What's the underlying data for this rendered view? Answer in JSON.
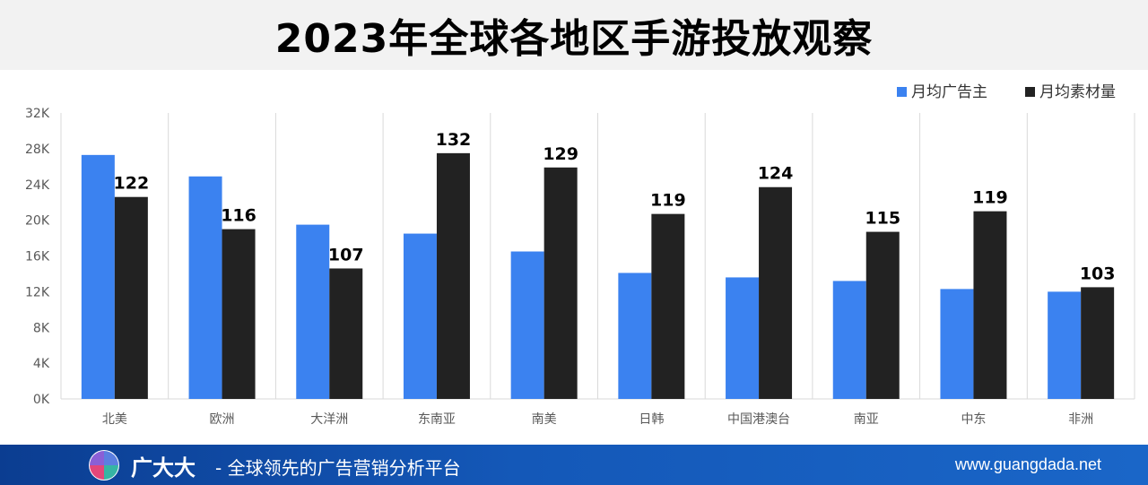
{
  "page": {
    "title": "2023年全球各地区手游投放观察"
  },
  "footer": {
    "brand": "广大大",
    "slogan": "- 全球领先的广告营销分析平台",
    "website": "www.guangdada.net"
  },
  "chart_data": {
    "type": "bar",
    "title": "",
    "xlabel": "",
    "ylabel": "",
    "categories": [
      "北美",
      "欧洲",
      "大洋洲",
      "东南亚",
      "南美",
      "日韩",
      "中国港澳台",
      "南亚",
      "中东",
      "非洲"
    ],
    "series": [
      {
        "name": "月均广告主",
        "color": "#3b82f0",
        "values": [
          27300,
          24900,
          19500,
          18500,
          16500,
          14100,
          13600,
          13200,
          12300,
          12000
        ]
      },
      {
        "name": "月均素材量",
        "color": "#222222",
        "values": [
          22600,
          19000,
          14600,
          27500,
          25900,
          20700,
          23700,
          18700,
          21000,
          12500
        ],
        "data_labels": [
          "122",
          "116",
          "107",
          "132",
          "129",
          "119",
          "124",
          "115",
          "119",
          "103"
        ]
      }
    ],
    "ylim": [
      0,
      32000
    ],
    "yticks": [
      0,
      4000,
      8000,
      12000,
      16000,
      20000,
      24000,
      28000,
      32000
    ],
    "ytick_labels": [
      "0K",
      "4K",
      "8K",
      "12K",
      "16K",
      "20K",
      "24K",
      "28K",
      "32K"
    ],
    "grid": "vertical",
    "legend_position": "top-right"
  }
}
